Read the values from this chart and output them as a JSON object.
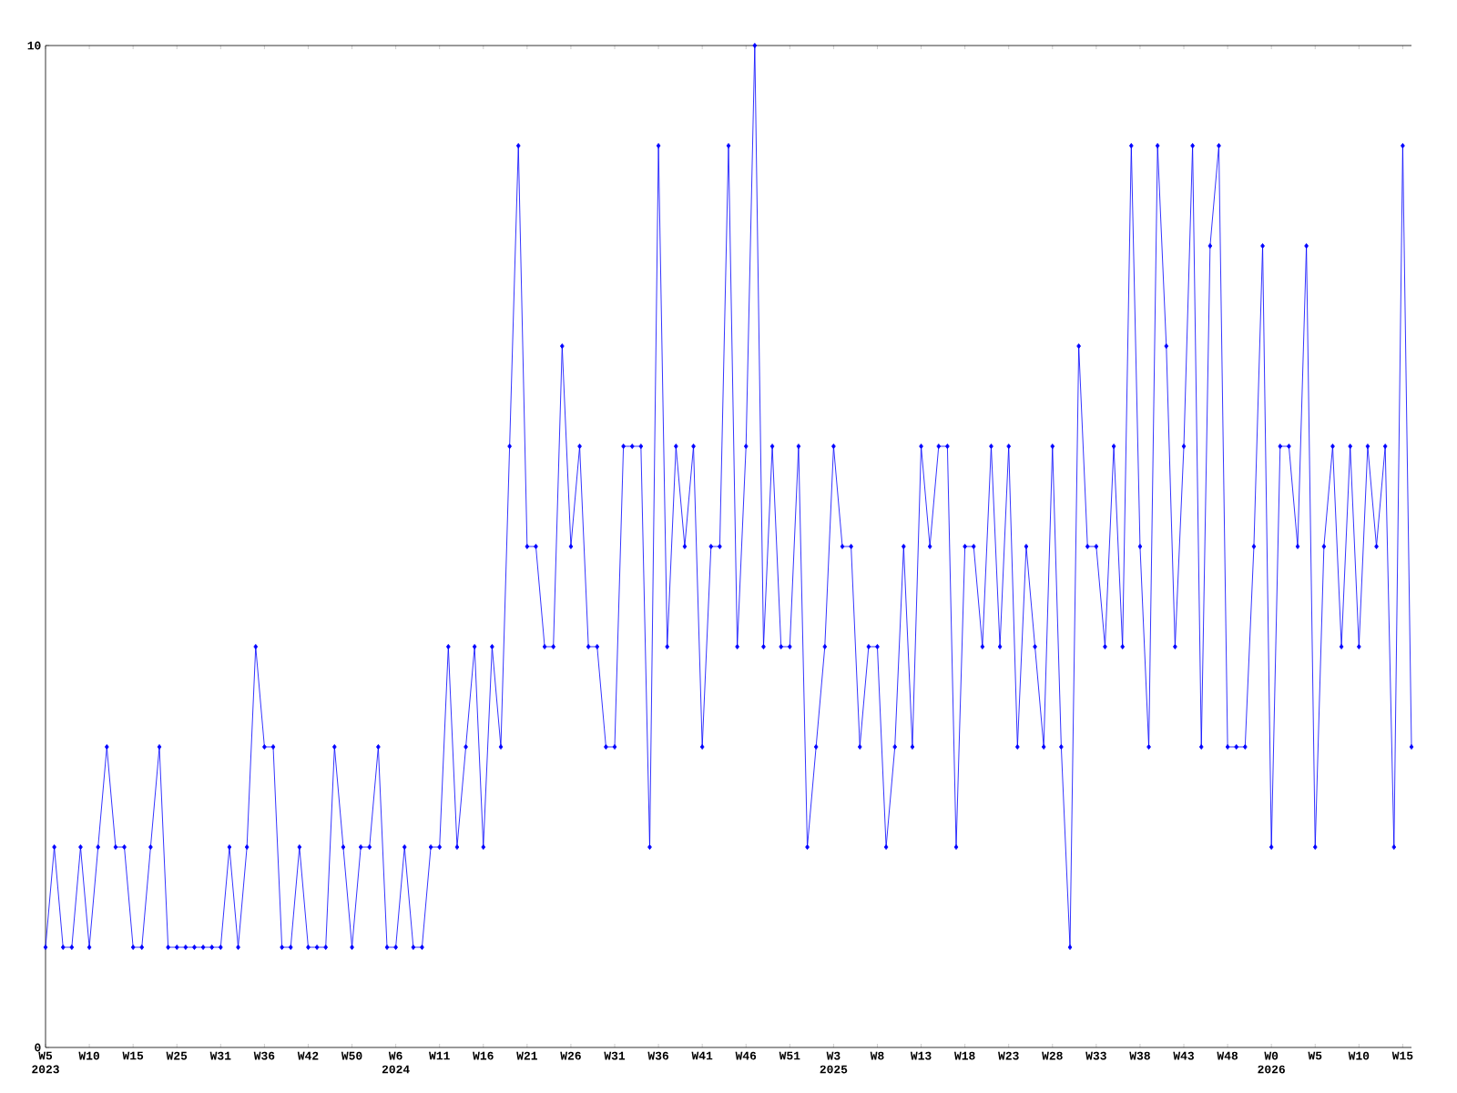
{
  "chart_data": {
    "type": "line",
    "categories": [
      "W5 2023",
      null,
      null,
      null,
      null,
      "W10",
      null,
      null,
      null,
      null,
      "W15",
      null,
      null,
      null,
      null,
      "W25",
      null,
      null,
      null,
      null,
      "W31",
      null,
      null,
      null,
      null,
      "W36",
      null,
      null,
      null,
      null,
      "W42",
      null,
      null,
      null,
      null,
      "W50",
      null,
      null,
      null,
      null,
      "W6 2024",
      null,
      null,
      null,
      null,
      "W11",
      null,
      null,
      null,
      null,
      "W16",
      null,
      null,
      null,
      null,
      "W21",
      null,
      null,
      null,
      null,
      "W26",
      null,
      null,
      null,
      null,
      "W31",
      null,
      null,
      null,
      null,
      "W36",
      null,
      null,
      null,
      null,
      "W41",
      null,
      null,
      null,
      null,
      "W46",
      null,
      null,
      null,
      null,
      "W51",
      null,
      null,
      null,
      null,
      "W3 2025",
      null,
      null,
      null,
      null,
      "W8",
      null,
      null,
      null,
      null,
      "W13",
      null,
      null,
      null,
      null,
      "W18",
      null,
      null,
      null,
      null,
      "W23",
      null,
      null,
      null,
      null,
      "W28",
      null,
      null,
      null,
      null,
      "W33",
      null,
      null,
      null,
      null,
      "W38",
      null,
      null,
      null,
      null,
      "W43",
      null,
      null,
      null,
      null,
      "W48",
      null,
      null,
      null,
      null,
      "W0 2026",
      null,
      null,
      null,
      null,
      "W5",
      null,
      null,
      null,
      null,
      "W10",
      null,
      null,
      null,
      null,
      "W15",
      null
    ],
    "series": [
      {
        "color": "#0000ff",
        "values": [
          1,
          2,
          1,
          1,
          2,
          1,
          2,
          3,
          2,
          2,
          1,
          1,
          2,
          3,
          1,
          1,
          1,
          1,
          1,
          1,
          1,
          2,
          1,
          2,
          4,
          3,
          3,
          1,
          1,
          2,
          1,
          1,
          1,
          3,
          2,
          1,
          2,
          2,
          3,
          1,
          1,
          2,
          1,
          1,
          2,
          2,
          4,
          2,
          3,
          4,
          2,
          4,
          3,
          6,
          9,
          5,
          5,
          4,
          4,
          7,
          5,
          6,
          4,
          4,
          3,
          3,
          6,
          6,
          6,
          2,
          9,
          4,
          6,
          5,
          6,
          3,
          5,
          5,
          9,
          4,
          6,
          10,
          4,
          6,
          4,
          4,
          6,
          2,
          3,
          4,
          6,
          5,
          5,
          3,
          4,
          4,
          2,
          3,
          5,
          3,
          6,
          5,
          6,
          6,
          2,
          5,
          5,
          4,
          6,
          4,
          6,
          3,
          5,
          4,
          3,
          6,
          3,
          1,
          7,
          5,
          5,
          4,
          6,
          4,
          9,
          5,
          3,
          9,
          7,
          4,
          6,
          9,
          3,
          8,
          9,
          3,
          3,
          3,
          5,
          8,
          2,
          6,
          6,
          5,
          8,
          2,
          5,
          6,
          4,
          6,
          4,
          6,
          5,
          6,
          2,
          9,
          3
        ]
      }
    ],
    "ylim": [
      0,
      10
    ],
    "yticks": [
      0,
      10
    ],
    "marker": "diamond",
    "line_style": "solid"
  }
}
